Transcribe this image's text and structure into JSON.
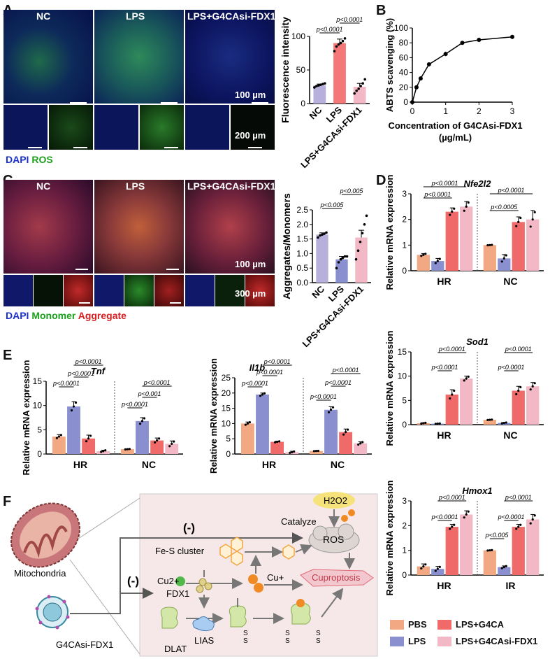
{
  "panel_labels": {
    "a": "A",
    "b": "B",
    "c": "C",
    "d": "D",
    "e": "E",
    "f": "F"
  },
  "panelA": {
    "titles": [
      "NC",
      "LPS",
      "LPS+G4CAsi-FDX1"
    ],
    "scale_top": "100 µm",
    "scale_bottom": "200 µm",
    "legend_dapi": "DAPI",
    "legend_ros": "ROS"
  },
  "panelC": {
    "titles": [
      "NC",
      "LPS",
      "LPS+G4CAsi-FDX1"
    ],
    "scale_top": "100 µm",
    "scale_bottom": "300 µm",
    "legend_dapi": "DAPI",
    "legend_monomer": "Monomer",
    "legend_aggregate": "Aggregate"
  },
  "colors": {
    "PBS": "#f2a882",
    "LPS": "#8a8fd0",
    "LPS+G4CA": "#f06a6a",
    "LPS+G4CAsi-FDX1": "#f2b8c6",
    "NC": "#b8b0dc",
    "A_LPS": "#f57878",
    "A_si": "#f2b8c6"
  },
  "legend": {
    "items": [
      "PBS",
      "LPS+G4CA",
      "LPS",
      "LPS+G4CAsi-FDX1"
    ]
  },
  "panelF": {
    "mito": "Mitochondria",
    "nano": "G4CAsi-FDX1",
    "minus1": "(-)",
    "minus2": "(-)",
    "h2o2": "H2O2",
    "catalyze": "Catalyze",
    "ros": "ROS",
    "fes": "Fe-S cluster",
    "cu2": "Cu2+",
    "cu1": "Cu+",
    "fdx1": "FDX1",
    "cupro": "Cuproptosis",
    "dlat": "DLAT",
    "lias": "LIAS",
    "s": "S"
  },
  "chart_data": [
    {
      "id": "A",
      "type": "bar",
      "ylabel": "Fluorescence intensity",
      "ylim": [
        0,
        100
      ],
      "yticks": [
        0,
        50,
        100
      ],
      "categories": [
        "NC",
        "LPS",
        "LPS+G4CAsi-FDX1"
      ],
      "values": [
        27,
        90,
        25
      ],
      "errors": [
        2,
        6,
        5
      ],
      "points": [
        [
          24,
          26,
          27,
          28,
          29,
          30
        ],
        [
          78,
          85,
          88,
          90,
          93,
          97
        ],
        [
          15,
          19,
          22,
          26,
          30,
          36
        ]
      ],
      "annotations": [
        "p<0.0001",
        "p<0.0001"
      ]
    },
    {
      "id": "B",
      "type": "line",
      "xlabel": "Concentration of G4CAsi-FDX1 (µg/mL)",
      "ylabel": "ABTS scavenging (%)",
      "xlim": [
        0,
        3
      ],
      "ylim": [
        0,
        100
      ],
      "xticks": [
        0,
        1,
        2,
        3
      ],
      "yticks": [
        0,
        20,
        40,
        60,
        80,
        100
      ],
      "x": [
        0,
        0.125,
        0.25,
        0.5,
        1,
        1.5,
        2,
        3
      ],
      "y": [
        0,
        20,
        32,
        51,
        65,
        80,
        84,
        88
      ],
      "errors": [
        0,
        2,
        2,
        2,
        3,
        2,
        3,
        2
      ]
    },
    {
      "id": "C",
      "type": "bar",
      "ylabel": "Aggregates/Monomers",
      "ylim": [
        0,
        2.5
      ],
      "yticks": [
        0.0,
        0.5,
        1.0,
        1.5,
        2.0,
        2.5
      ],
      "categories": [
        "NC",
        "LPS",
        "LPS+G4CAsi-FDX1"
      ],
      "values": [
        1.65,
        0.8,
        1.55
      ],
      "errors": [
        0.06,
        0.1,
        0.25
      ],
      "points": [
        [
          1.55,
          1.62,
          1.65,
          1.68,
          1.72
        ],
        [
          0.5,
          0.7,
          0.8,
          0.85,
          0.9,
          0.9
        ],
        [
          0.8,
          1.1,
          1.4,
          1.7,
          2.0,
          2.3
        ]
      ],
      "annotations": [
        "p<0.005",
        "p<0.005"
      ]
    },
    {
      "id": "D-Nfe2l2",
      "type": "bar",
      "title": "Nfe2l2",
      "ylabel": "Relative mRNA expression",
      "ylim": [
        0,
        3
      ],
      "yticks": [
        0,
        1,
        2,
        3
      ],
      "groups": [
        "HR",
        "NC"
      ],
      "series": [
        {
          "name": "PBS",
          "values": [
            0.62,
            1.0
          ],
          "errors": [
            0.05,
            0.01
          ]
        },
        {
          "name": "LPS",
          "values": [
            0.38,
            0.48
          ],
          "errors": [
            0.1,
            0.15
          ]
        },
        {
          "name": "LPS+G4CA",
          "values": [
            2.3,
            1.9
          ],
          "errors": [
            0.15,
            0.2
          ]
        },
        {
          "name": "LPS+G4CAsi-FDX1",
          "values": [
            2.5,
            2.0
          ],
          "errors": [
            0.2,
            0.35
          ]
        }
      ],
      "annotations": [
        [
          "p<0.0001",
          "p<0.0001"
        ],
        [
          "p<0.0005",
          "p<0.0001"
        ]
      ]
    },
    {
      "id": "D-Sod1",
      "type": "bar",
      "title": "Sod1",
      "ylabel": "Relative mRNA expression",
      "ylim": [
        0,
        15
      ],
      "yticks": [
        0,
        5,
        10,
        15
      ],
      "groups": [
        "HR",
        "NC"
      ],
      "series": [
        {
          "name": "PBS",
          "values": [
            0.3,
            1.0
          ],
          "errors": [
            0.1,
            0.05
          ]
        },
        {
          "name": "LPS",
          "values": [
            0.2,
            0.35
          ],
          "errors": [
            0.05,
            0.1
          ]
        },
        {
          "name": "LPS+G4CA",
          "values": [
            6.2,
            7.0
          ],
          "errors": [
            1.0,
            0.9
          ]
        },
        {
          "name": "LPS+G4CAsi-FDX1",
          "values": [
            9.5,
            7.9
          ],
          "errors": [
            0.5,
            0.8
          ]
        }
      ],
      "annotations": [
        [
          "p<0.0001",
          "p<0.0001"
        ],
        [
          "p<0.0001",
          "p<0.0001"
        ]
      ]
    },
    {
      "id": "D-Hmox1",
      "type": "bar",
      "title": "Hmox1",
      "ylabel": "Relative mRNA expression",
      "ylim": [
        0,
        3
      ],
      "yticks": [
        0,
        1,
        2,
        3
      ],
      "groups": [
        "HR",
        "IR"
      ],
      "series": [
        {
          "name": "PBS",
          "values": [
            0.35,
            1.0
          ],
          "errors": [
            0.1,
            0.01
          ]
        },
        {
          "name": "LPS",
          "values": [
            0.25,
            0.32
          ],
          "errors": [
            0.1,
            0.05
          ]
        },
        {
          "name": "LPS+G4CA",
          "values": [
            1.95,
            1.95
          ],
          "errors": [
            0.1,
            0.1
          ]
        },
        {
          "name": "LPS+G4CAsi-FDX1",
          "values": [
            2.45,
            2.25
          ],
          "errors": [
            0.15,
            0.2
          ]
        }
      ],
      "annotations": [
        [
          "p<0.0001",
          "p<0.0001"
        ],
        [
          "p<0.005",
          "p<0.0001",
          "p<0.0001"
        ]
      ]
    },
    {
      "id": "E-Tnf",
      "type": "bar",
      "title": "Tnf",
      "ylabel": "Relative mRNA expression",
      "ylim": [
        0,
        15
      ],
      "yticks": [
        0,
        5,
        10,
        15
      ],
      "groups": [
        "HR",
        "NC"
      ],
      "series": [
        {
          "name": "PBS",
          "values": [
            3.6,
            1.0
          ],
          "errors": [
            0.4,
            0.05
          ]
        },
        {
          "name": "LPS",
          "values": [
            9.8,
            6.8
          ],
          "errors": [
            1.0,
            0.7
          ]
        },
        {
          "name": "LPS+G4CA",
          "values": [
            3.2,
            2.8
          ],
          "errors": [
            0.7,
            0.5
          ]
        },
        {
          "name": "LPS+G4CAsi-FDX1",
          "values": [
            0.6,
            2.1
          ],
          "errors": [
            0.2,
            0.6
          ]
        }
      ],
      "annotations": [
        [
          "p<0.0001",
          "p<0.0001",
          "p<0.0001"
        ],
        [
          "p<0.0001",
          "p<0.001",
          "p<0.0001"
        ]
      ]
    },
    {
      "id": "E-Il1b",
      "type": "bar",
      "title": "Il1b",
      "ylabel": "Relative mRNA expression",
      "ylim": [
        0,
        25
      ],
      "yticks": [
        0,
        5,
        10,
        15,
        20,
        25
      ],
      "groups": [
        "HR",
        "NC"
      ],
      "series": [
        {
          "name": "PBS",
          "values": [
            10.0,
            1.0
          ],
          "errors": [
            0.5,
            0.05
          ]
        },
        {
          "name": "LPS",
          "values": [
            19.5,
            14.5
          ],
          "errors": [
            0.5,
            1.0
          ]
        },
        {
          "name": "LPS+G4CA",
          "values": [
            4.0,
            7.2
          ],
          "errors": [
            0.2,
            1.0
          ]
        },
        {
          "name": "LPS+G4CAsi-FDX1",
          "values": [
            0.6,
            3.5
          ],
          "errors": [
            0.3,
            0.5
          ]
        }
      ],
      "annotations": [
        [
          "p<0.0001",
          "p<0.0001",
          "p<0.0001"
        ],
        [
          "p<0.0001",
          "p<0.0001",
          "p<0.0001"
        ]
      ]
    }
  ]
}
